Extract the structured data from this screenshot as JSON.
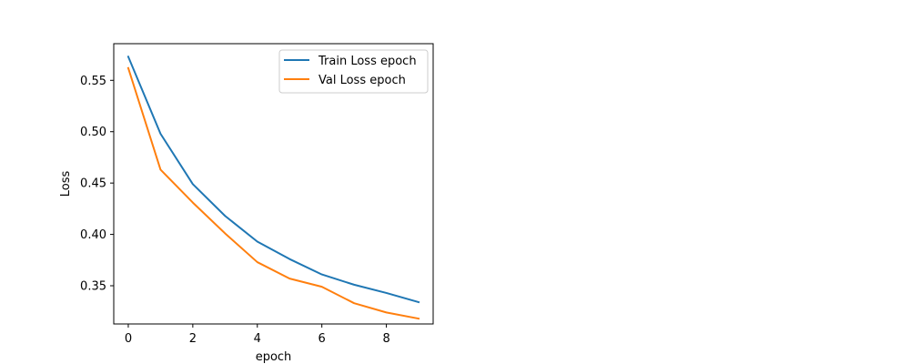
{
  "chart_data": {
    "type": "line",
    "xlabel": "epoch",
    "ylabel": "Loss",
    "x": [
      0,
      1,
      2,
      3,
      4,
      5,
      6,
      7,
      8,
      9
    ],
    "xlim": [
      -0.45,
      9.45
    ],
    "ylim": [
      0.3128,
      0.5857
    ],
    "xticks": [
      0,
      2,
      4,
      6,
      8
    ],
    "xtick_labels": [
      "0",
      "2",
      "4",
      "6",
      "8"
    ],
    "yticks": [
      0.35,
      0.4,
      0.45,
      0.5,
      0.55
    ],
    "ytick_labels": [
      "0.35",
      "0.40",
      "0.45",
      "0.50",
      "0.55"
    ],
    "grid": false,
    "legend_position": "top-right",
    "series": [
      {
        "name": "Train Loss epoch",
        "color": "#1f77b4",
        "values": [
          0.573,
          0.498,
          0.449,
          0.418,
          0.393,
          0.376,
          0.361,
          0.351,
          0.343,
          0.334
        ]
      },
      {
        "name": "Val Loss epoch",
        "color": "#ff7f0e",
        "values": [
          0.562,
          0.463,
          0.431,
          0.401,
          0.373,
          0.357,
          0.349,
          0.333,
          0.324,
          0.318
        ]
      }
    ]
  }
}
